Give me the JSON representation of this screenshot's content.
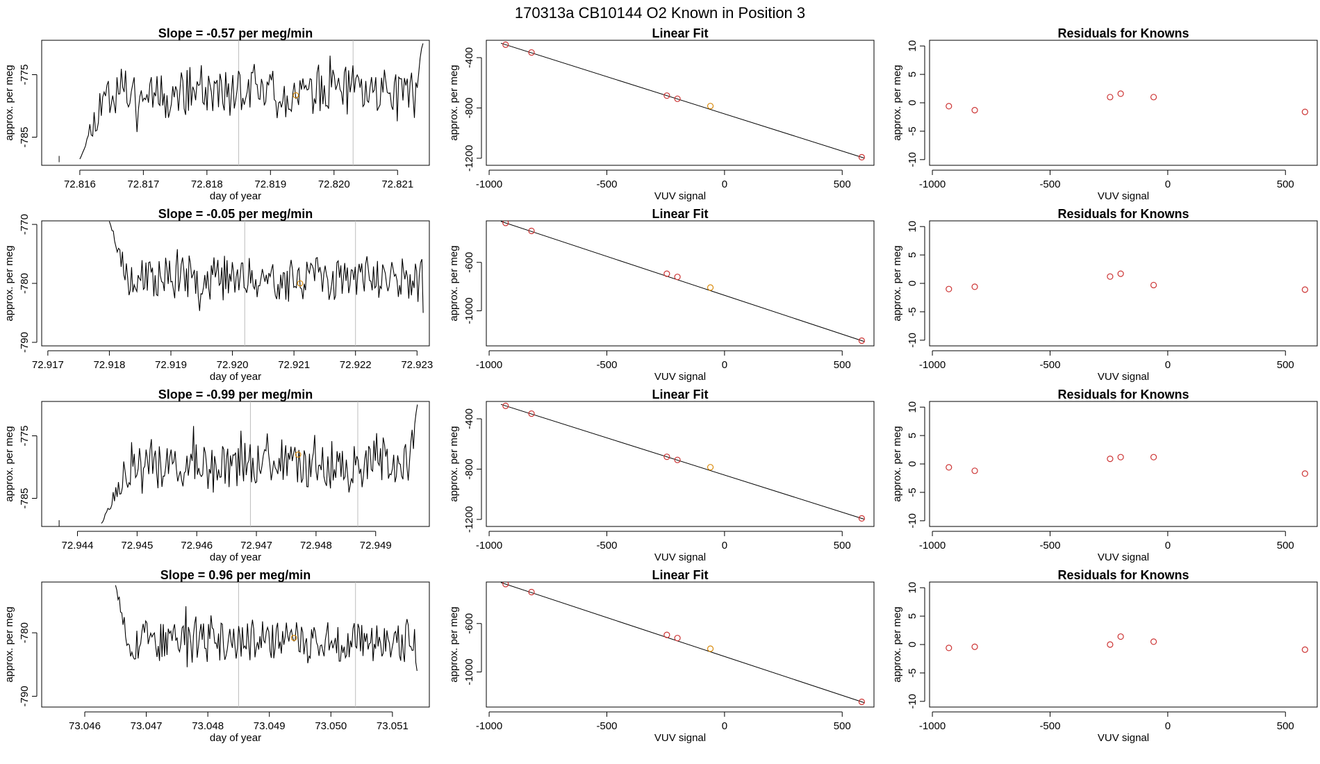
{
  "page": {
    "title": "170313a     CB10144    O2 Known in Position  3"
  },
  "colors": {
    "trace": "#000000",
    "known_point": "#d8890a",
    "resid_point": "#cc3333",
    "vline": "#bdbdbd"
  },
  "chart_data": [
    {
      "type": "line",
      "title": "Slope =  -0.57  per meg/min",
      "xlabel": "day of year",
      "ylabel": "approx. per meg",
      "xlim": [
        72.8154,
        72.8215
      ],
      "ylim": [
        -789.5,
        -769.5
      ],
      "xticks": [
        72.816,
        72.817,
        72.818,
        72.819,
        72.82,
        72.821
      ],
      "xtick_labels": [
        "72.816",
        "72.817",
        "72.818",
        "72.819",
        "72.820",
        "72.821"
      ],
      "yticks": [
        -785,
        -775
      ],
      "ytick_labels": [
        "-785",
        "-775"
      ],
      "vlines": [
        72.8185,
        72.8203
      ],
      "known": {
        "x": 72.8194,
        "y": -778.3
      },
      "levels": [
        -770,
        -776,
        -779,
        -788,
        -789
      ],
      "series": {
        "x_start": 72.816,
        "x_end": 72.8214,
        "mean": -777.8,
        "amp": 3.5,
        "seed": 11,
        "rise_start": 72.816,
        "rise_end": 72.8164,
        "rise_from": -788.5,
        "tail_end_value": -770
      }
    },
    {
      "type": "scatter",
      "title": "Linear Fit",
      "xlabel": "VUV signal",
      "ylabel": "approx. per meg",
      "xlim": [
        -1012,
        635
      ],
      "ylim": [
        -1256,
        -262
      ],
      "xticks": [
        -1000,
        -500,
        0,
        500
      ],
      "xtick_labels": [
        "-1000",
        "-500",
        "0",
        "500"
      ],
      "yticks": [
        -1200,
        -800,
        -400
      ],
      "ytick_labels": [
        "-1200",
        "-800",
        "-400"
      ],
      "points": [
        {
          "x": -930,
          "y": -297
        },
        {
          "x": -820,
          "y": -359
        },
        {
          "x": -245,
          "y": -702
        },
        {
          "x": -200,
          "y": -727
        },
        {
          "x": -60,
          "y": -785,
          "known": true
        },
        {
          "x": 583,
          "y": -1192
        }
      ],
      "fit": {
        "x": [
          -930,
          583
        ],
        "y": [
          -297,
          -1192
        ]
      }
    },
    {
      "type": "scatter",
      "title": "Residuals for Knowns",
      "xlabel": "VUV signal",
      "ylabel": "approx. per meg",
      "xlim": [
        -1012,
        635
      ],
      "ylim": [
        -11,
        11
      ],
      "xticks": [
        -1000,
        -500,
        0,
        500
      ],
      "xtick_labels": [
        "-1000",
        "-500",
        "0",
        "500"
      ],
      "yticks": [
        -10,
        -5,
        0,
        5,
        10
      ],
      "ytick_labels": [
        "-10",
        "-5",
        "0",
        "5",
        "10"
      ],
      "points": [
        {
          "x": -930,
          "y": -0.6
        },
        {
          "x": -820,
          "y": -1.3
        },
        {
          "x": -245,
          "y": 1.0
        },
        {
          "x": -200,
          "y": 1.6
        },
        {
          "x": -60,
          "y": 1.0
        },
        {
          "x": 583,
          "y": -1.6
        }
      ]
    },
    {
      "type": "line",
      "title": "Slope =  -0.05  per meg/min",
      "xlabel": "day of year",
      "ylabel": "approx. per meg",
      "xlim": [
        72.9169,
        72.9232
      ],
      "ylim": [
        -790.6,
        -769.4
      ],
      "xticks": [
        72.917,
        72.918,
        72.919,
        72.92,
        72.921,
        72.922,
        72.923
      ],
      "xtick_labels": [
        "72.917",
        "72.918",
        "72.919",
        "72.920",
        "72.921",
        "72.922",
        "72.923"
      ],
      "yticks": [
        -790,
        -780,
        -770
      ],
      "ytick_labels": [
        "-790",
        "-780",
        "-770"
      ],
      "vlines": [
        72.9202,
        72.922
      ],
      "known": {
        "x": 72.9211,
        "y": -780.0
      },
      "levels": [
        -770,
        -778,
        -780,
        -785,
        -790
      ],
      "series": {
        "x_start": 72.918,
        "x_end": 72.9231,
        "mean": -779.2,
        "amp": 3.2,
        "seed": 23,
        "fall_start": 72.918,
        "fall_end": 72.9183,
        "fall_from": -769.5,
        "end_value": -785
      }
    },
    {
      "type": "scatter",
      "title": "Linear Fit",
      "xlabel": "VUV signal",
      "ylabel": "approx. per meg",
      "xlim": [
        -1012,
        635
      ],
      "ylim": [
        -1290,
        -257
      ],
      "xticks": [
        -1000,
        -500,
        0,
        500
      ],
      "xtick_labels": [
        "-1000",
        "-500",
        "0",
        "500"
      ],
      "yticks": [
        -1000,
        -600
      ],
      "ytick_labels": [
        "-1000",
        "-600"
      ],
      "points": [
        {
          "x": -930,
          "y": -274
        },
        {
          "x": -820,
          "y": -340
        },
        {
          "x": -245,
          "y": -694
        },
        {
          "x": -200,
          "y": -720
        },
        {
          "x": -60,
          "y": -808,
          "known": true
        },
        {
          "x": 583,
          "y": -1247
        }
      ],
      "fit": {
        "x": [
          -930,
          583
        ],
        "y": [
          -274,
          -1247
        ]
      }
    },
    {
      "type": "scatter",
      "title": "Residuals for Knowns",
      "xlabel": "VUV signal",
      "ylabel": "approx. per meg",
      "xlim": [
        -1012,
        635
      ],
      "ylim": [
        -11,
        11
      ],
      "xticks": [
        -1000,
        -500,
        0,
        500
      ],
      "xtick_labels": [
        "-1000",
        "-500",
        "0",
        "500"
      ],
      "yticks": [
        -10,
        -5,
        0,
        5,
        10
      ],
      "ytick_labels": [
        "-10",
        "-5",
        "0",
        "5",
        "10"
      ],
      "points": [
        {
          "x": -930,
          "y": -1.0
        },
        {
          "x": -820,
          "y": -0.6
        },
        {
          "x": -245,
          "y": 1.2
        },
        {
          "x": -200,
          "y": 1.7
        },
        {
          "x": -60,
          "y": -0.3
        },
        {
          "x": 583,
          "y": -1.1
        }
      ]
    },
    {
      "type": "line",
      "title": "Slope =  -0.99  per meg/min",
      "xlabel": "day of year",
      "ylabel": "approx. per meg",
      "xlim": [
        72.9434,
        72.9499
      ],
      "ylim": [
        -789.5,
        -769.5
      ],
      "xticks": [
        72.944,
        72.945,
        72.946,
        72.947,
        72.948,
        72.949
      ],
      "xtick_labels": [
        "72.944",
        "72.945",
        "72.946",
        "72.947",
        "72.948",
        "72.949"
      ],
      "yticks": [
        -785,
        -775
      ],
      "ytick_labels": [
        "-785",
        "-775"
      ],
      "vlines": [
        72.9469,
        72.9487
      ],
      "known": {
        "x": 72.9477,
        "y": -778.0
      },
      "levels": [
        -770,
        -776,
        -779,
        -785,
        -789
      ],
      "series": {
        "x_start": 72.9444,
        "x_end": 72.9497,
        "mean": -779.8,
        "amp": 3.6,
        "seed": 37,
        "rise_start": 72.9444,
        "rise_end": 72.9449,
        "rise_from": -789.0,
        "tail_end_value": -770
      }
    },
    {
      "type": "scatter",
      "title": "Linear Fit",
      "xlabel": "VUV signal",
      "ylabel": "approx. per meg",
      "xlim": [
        -1012,
        635
      ],
      "ylim": [
        -1256,
        -262
      ],
      "xticks": [
        -1000,
        -500,
        0,
        500
      ],
      "xtick_labels": [
        "-1000",
        "-500",
        "0",
        "500"
      ],
      "yticks": [
        -1200,
        -800,
        -400
      ],
      "ytick_labels": [
        "-1200",
        "-800",
        "-400"
      ],
      "points": [
        {
          "x": -930,
          "y": -297
        },
        {
          "x": -820,
          "y": -359
        },
        {
          "x": -245,
          "y": -702
        },
        {
          "x": -200,
          "y": -727
        },
        {
          "x": -60,
          "y": -785,
          "known": true
        },
        {
          "x": 583,
          "y": -1192
        }
      ],
      "fit": {
        "x": [
          -930,
          583
        ],
        "y": [
          -297,
          -1192
        ]
      }
    },
    {
      "type": "scatter",
      "title": "Residuals for Knowns",
      "xlabel": "VUV signal",
      "ylabel": "approx. per meg",
      "xlim": [
        -1012,
        635
      ],
      "ylim": [
        -11,
        11
      ],
      "xticks": [
        -1000,
        -500,
        0,
        500
      ],
      "xtick_labels": [
        "-1000",
        "-500",
        "0",
        "500"
      ],
      "yticks": [
        -10,
        -5,
        0,
        5,
        10
      ],
      "ytick_labels": [
        "-10",
        "-5",
        "0",
        "5",
        "10"
      ],
      "points": [
        {
          "x": -930,
          "y": -0.6
        },
        {
          "x": -820,
          "y": -1.2
        },
        {
          "x": -245,
          "y": 0.9
        },
        {
          "x": -200,
          "y": 1.2
        },
        {
          "x": -60,
          "y": 1.2
        },
        {
          "x": 583,
          "y": -1.7
        }
      ]
    },
    {
      "type": "line",
      "title": "Slope =  0.96  per meg/min",
      "xlabel": "day of year",
      "ylabel": "approx. per meg",
      "xlim": [
        73.0453,
        73.0516
      ],
      "ylim": [
        -791.7,
        -772.0
      ],
      "xticks": [
        73.046,
        73.047,
        73.048,
        73.049,
        73.05,
        73.051
      ],
      "xtick_labels": [
        "73.046",
        "73.047",
        "73.048",
        "73.049",
        "73.050",
        "73.051"
      ],
      "yticks": [
        -790,
        -780
      ],
      "ytick_labels": [
        "-790",
        "-780"
      ],
      "vlines": [
        73.0485,
        73.0504
      ],
      "known": {
        "x": 73.0494,
        "y": -780.8
      },
      "levels": [
        -773,
        -778,
        -781,
        -786,
        -791
      ],
      "series": {
        "x_start": 73.0465,
        "x_end": 73.0514,
        "mean": -781.2,
        "amp": 3.0,
        "seed": 53,
        "fall_start": 73.0465,
        "fall_end": 73.0467,
        "fall_from": -772.5,
        "end_value": -786
      }
    },
    {
      "type": "scatter",
      "title": "Linear Fit",
      "xlabel": "VUV signal",
      "ylabel": "approx. per meg",
      "xlim": [
        -1012,
        635
      ],
      "ylim": [
        -1290,
        -257
      ],
      "xticks": [
        -1000,
        -500,
        0,
        500
      ],
      "xtick_labels": [
        "-1000",
        "-500",
        "0",
        "500"
      ],
      "yticks": [
        -1000,
        -600
      ],
      "ytick_labels": [
        "-1000",
        "-600"
      ],
      "points": [
        {
          "x": -930,
          "y": -274
        },
        {
          "x": -820,
          "y": -340
        },
        {
          "x": -245,
          "y": -694
        },
        {
          "x": -200,
          "y": -720
        },
        {
          "x": -60,
          "y": -808,
          "known": true
        },
        {
          "x": 583,
          "y": -1247
        }
      ],
      "fit": {
        "x": [
          -930,
          583
        ],
        "y": [
          -274,
          -1247
        ]
      }
    },
    {
      "type": "scatter",
      "title": "Residuals for Knowns",
      "xlabel": "VUV signal",
      "ylabel": "approx. per meg",
      "xlim": [
        -1012,
        635
      ],
      "ylim": [
        -11,
        11
      ],
      "xticks": [
        -1000,
        -500,
        0,
        500
      ],
      "xtick_labels": [
        "-1000",
        "-500",
        "0",
        "500"
      ],
      "yticks": [
        -10,
        -5,
        0,
        5,
        10
      ],
      "ytick_labels": [
        "-10",
        "-5",
        "0",
        "5",
        "10"
      ],
      "points": [
        {
          "x": -930,
          "y": -0.6
        },
        {
          "x": -820,
          "y": -0.4
        },
        {
          "x": -245,
          "y": 0.0
        },
        {
          "x": -200,
          "y": 1.4
        },
        {
          "x": -60,
          "y": 0.5
        },
        {
          "x": 583,
          "y": -0.9
        }
      ]
    }
  ]
}
